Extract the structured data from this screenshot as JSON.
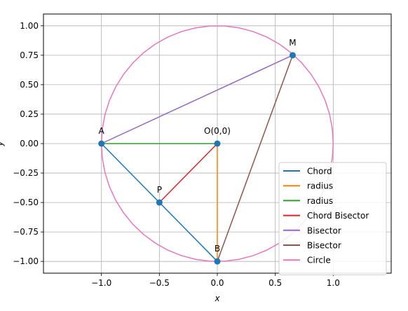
{
  "chart_data": {
    "type": "line",
    "title": "",
    "xlabel": "x",
    "ylabel": "y",
    "xlim": [
      -1.5,
      1.5
    ],
    "ylim": [
      -1.1,
      1.1
    ],
    "grid": true,
    "legend_position": "lower-right",
    "x_ticks": [
      {
        "value": -1.0,
        "label": "−1.0"
      },
      {
        "value": -0.5,
        "label": "−0.5"
      },
      {
        "value": 0.0,
        "label": "0.0"
      },
      {
        "value": 0.5,
        "label": "0.5"
      },
      {
        "value": 1.0,
        "label": "1.0"
      }
    ],
    "y_ticks": [
      {
        "value": 1.0,
        "label": "1.00"
      },
      {
        "value": 0.75,
        "label": "0.75"
      },
      {
        "value": 0.5,
        "label": "0.50"
      },
      {
        "value": 0.25,
        "label": "0.25"
      },
      {
        "value": 0.0,
        "label": "0.00"
      },
      {
        "value": -0.25,
        "label": "−0.25"
      },
      {
        "value": -0.5,
        "label": "−0.50"
      },
      {
        "value": -0.75,
        "label": "−0.75"
      },
      {
        "value": -1.0,
        "label": "−1.00"
      }
    ],
    "series": [
      {
        "name": "Chord",
        "color": "#1f77b4",
        "points": [
          [
            -1,
            0
          ],
          [
            0,
            -1
          ]
        ]
      },
      {
        "name": "radius",
        "color": "#ff7f0e",
        "points": [
          [
            0,
            0
          ],
          [
            0,
            -1
          ]
        ]
      },
      {
        "name": "radius",
        "color": "#2ca02c",
        "points": [
          [
            0,
            0
          ],
          [
            -1,
            0
          ]
        ]
      },
      {
        "name": "Chord Bisector",
        "color": "#d62728",
        "points": [
          [
            0,
            0
          ],
          [
            -0.5,
            -0.5
          ]
        ]
      },
      {
        "name": "Bisector",
        "color": "#9467bd",
        "points": [
          [
            -1,
            0
          ],
          [
            0.65,
            0.75
          ]
        ]
      },
      {
        "name": "Bisector",
        "color": "#8c564b",
        "points": [
          [
            0,
            -1
          ],
          [
            0.65,
            0.75
          ]
        ]
      },
      {
        "name": "Circle",
        "color": "#e377c2",
        "type": "circle",
        "center": [
          0,
          0
        ],
        "radius": 1
      }
    ],
    "points": [
      {
        "label": "A",
        "x": -1,
        "y": 0
      },
      {
        "label": "O(0,0)",
        "x": 0,
        "y": 0
      },
      {
        "label": "P",
        "x": -0.5,
        "y": -0.5
      },
      {
        "label": "B",
        "x": 0,
        "y": -1
      },
      {
        "label": "M",
        "x": 0.65,
        "y": 0.75
      }
    ],
    "point_color": "#1f77b4"
  }
}
